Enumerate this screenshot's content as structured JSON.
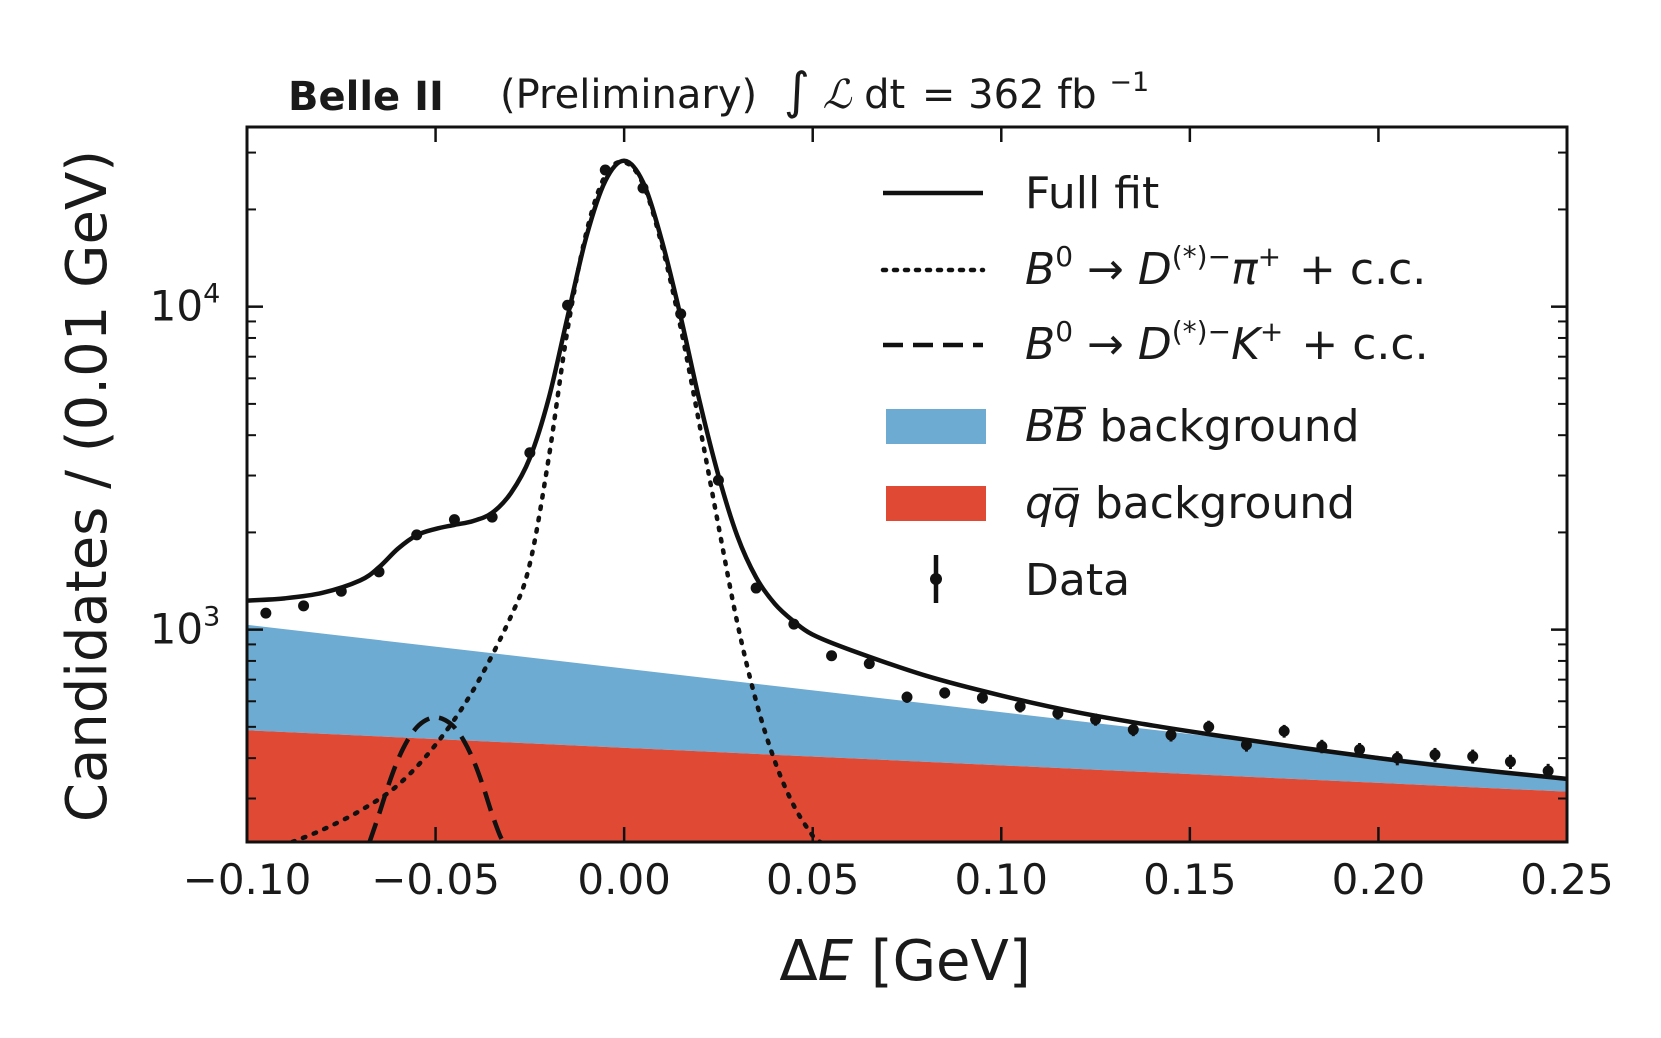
{
  "chart_data": {
    "type": "line",
    "header": {
      "experiment": "Belle II",
      "status": "(Preliminary)",
      "lumi_prefix": "∫",
      "lumi_L": "ℒ",
      "lumi_dt": "dt",
      "lumi_value": "= 362 fb",
      "lumi_exp": "−1"
    },
    "xlabel": {
      "delta": "Δ",
      "var": "E",
      "unit": " [GeV]"
    },
    "ylabel": "Candidates / (0.01 GeV)",
    "xlim": [
      -0.1,
      0.25
    ],
    "ylim": [
      220,
      36000
    ],
    "yscale": "log",
    "xticks": [
      -0.1,
      -0.05,
      0.0,
      0.05,
      0.1,
      0.15,
      0.2,
      0.25
    ],
    "xtick_labels": [
      "−0.10",
      "−0.05",
      "0.00",
      "0.05",
      "0.10",
      "0.15",
      "0.20",
      "0.25"
    ],
    "yticks_major": [
      1000,
      10000
    ],
    "ytick_labels": [
      {
        "base": "10",
        "exp": "3"
      },
      {
        "base": "10",
        "exp": "4"
      }
    ],
    "legend": {
      "position": "top-right",
      "items": [
        {
          "key": "full_fit",
          "style": "solid",
          "label": "Full fit"
        },
        {
          "key": "dpi",
          "style": "dotted",
          "b": "B",
          "b_sup": "0",
          "arrow": " → ",
          "d": "D",
          "d_sup": "(*)−",
          "meson": "π",
          "meson_sup": "+",
          "cc": "+ c.c."
        },
        {
          "key": "dk",
          "style": "dashed",
          "b": "B",
          "b_sup": "0",
          "arrow": " → ",
          "d": "D",
          "d_sup": "(*)−",
          "meson": "K",
          "meson_sup": "+",
          "cc": "+ c.c."
        },
        {
          "key": "bb",
          "style": "fill",
          "color": "#6eabd2",
          "p1": "B",
          "p2": "B",
          "label": " background"
        },
        {
          "key": "qq",
          "style": "fill",
          "color": "#e04a35",
          "p1": "q",
          "p2": "q",
          "label": " background"
        },
        {
          "key": "data",
          "style": "errorbar",
          "label": "Data"
        }
      ]
    },
    "colors": {
      "bb_background": "#6eabd2",
      "qq_background": "#e04a35",
      "line": "#111111"
    },
    "series": [
      {
        "name": "Data",
        "type": "points",
        "x": [
          -0.095,
          -0.085,
          -0.075,
          -0.065,
          -0.055,
          -0.045,
          -0.035,
          -0.025,
          -0.015,
          -0.005,
          0.005,
          0.015,
          0.025,
          0.035,
          0.045,
          0.055,
          0.065,
          0.075,
          0.085,
          0.095,
          0.105,
          0.115,
          0.125,
          0.135,
          0.145,
          0.155,
          0.165,
          0.175,
          0.185,
          0.195,
          0.205,
          0.215,
          0.225,
          0.235,
          0.245
        ],
        "y": [
          1125,
          1185,
          1315,
          1510,
          1965,
          2190,
          2230,
          3530,
          10100,
          26500,
          23300,
          9500,
          2900,
          1345,
          1040,
          830,
          785,
          618,
          637,
          615,
          578,
          550,
          527,
          490,
          472,
          500,
          440,
          485,
          435,
          425,
          400,
          410,
          405,
          390,
          365
        ]
      },
      {
        "name": "Full fit",
        "type": "line",
        "x": [
          -0.1,
          -0.09,
          -0.08,
          -0.07,
          -0.065,
          -0.06,
          -0.055,
          -0.05,
          -0.045,
          -0.04,
          -0.035,
          -0.03,
          -0.025,
          -0.02,
          -0.015,
          -0.01,
          -0.005,
          0.0,
          0.005,
          0.01,
          0.015,
          0.02,
          0.025,
          0.03,
          0.035,
          0.04,
          0.045,
          0.05,
          0.06,
          0.08,
          0.1,
          0.12,
          0.14,
          0.16,
          0.18,
          0.2,
          0.22,
          0.25
        ],
        "y": [
          1230,
          1250,
          1300,
          1420,
          1560,
          1780,
          1960,
          2050,
          2110,
          2170,
          2300,
          2650,
          3400,
          5200,
          9300,
          16500,
          24500,
          28300,
          24300,
          16000,
          9300,
          5100,
          3000,
          1950,
          1450,
          1200,
          1060,
          965,
          865,
          720,
          625,
          555,
          505,
          465,
          430,
          400,
          375,
          345
        ]
      },
      {
        "name": "B0 → D(*)−π+ + c.c.",
        "type": "line",
        "x": [
          -0.088,
          -0.08,
          -0.07,
          -0.06,
          -0.05,
          -0.04,
          -0.03,
          -0.025,
          -0.02,
          -0.015,
          -0.01,
          -0.005,
          0.0,
          0.005,
          0.01,
          0.015,
          0.02,
          0.025,
          0.03,
          0.035,
          0.04,
          0.045,
          0.05,
          0.052
        ],
        "y": [
          220,
          240,
          275,
          330,
          440,
          650,
          1100,
          1600,
          3400,
          8500,
          17000,
          25500,
          28000,
          24000,
          15500,
          8600,
          4300,
          2100,
          1050,
          600,
          390,
          285,
          230,
          220
        ]
      },
      {
        "name": "B0 → D(*)−K+ + c.c.",
        "type": "line",
        "x": [
          -0.0675,
          -0.065,
          -0.0625,
          -0.06,
          -0.0575,
          -0.055,
          -0.0525,
          -0.05,
          -0.0475,
          -0.045,
          -0.0425,
          -0.04,
          -0.0375,
          -0.035,
          -0.0325,
          -0.031
        ],
        "y": [
          220,
          268,
          330,
          395,
          453,
          498,
          525,
          535,
          525,
          498,
          453,
          395,
          330,
          268,
          225,
          220
        ]
      },
      {
        "name": "BB background",
        "type": "band",
        "x": [
          -0.1,
          0.25
        ],
        "y_low": [
          488,
          315
        ],
        "y_high": [
          1035,
          348
        ]
      },
      {
        "name": "qq background",
        "type": "band",
        "x": [
          -0.1,
          0.25
        ],
        "y_low": [
          220,
          220
        ],
        "y_high": [
          488,
          315
        ]
      }
    ]
  }
}
